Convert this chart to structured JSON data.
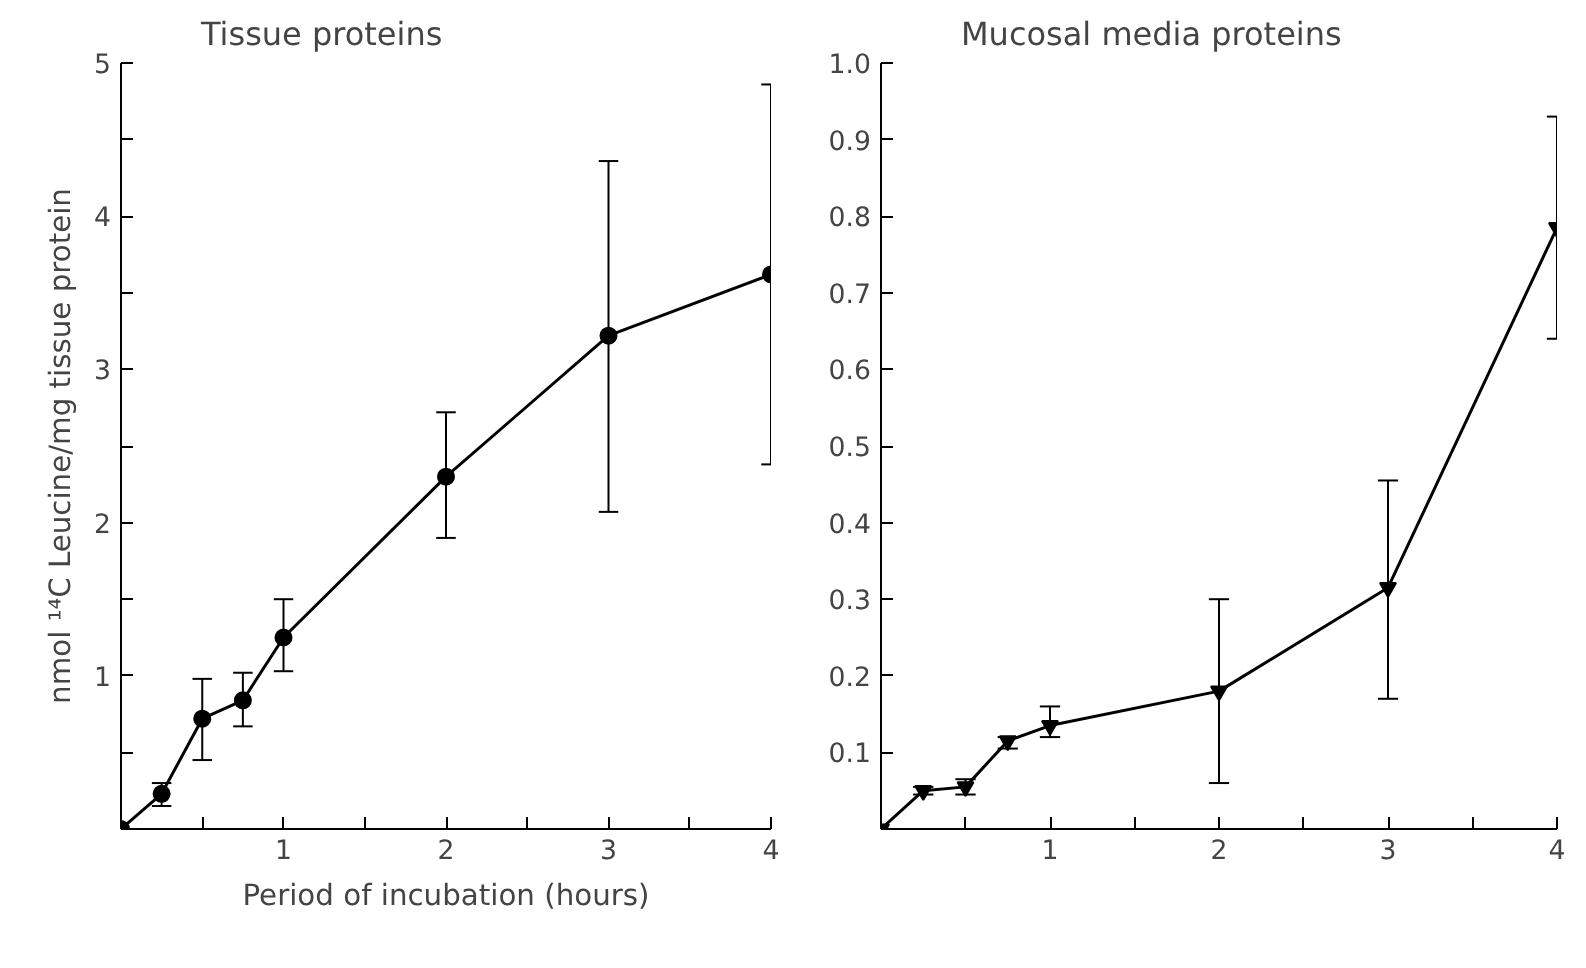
{
  "chart_data": [
    {
      "type": "line",
      "title": "Tissue proteins",
      "xlabel": "Period of incubation (hours)",
      "ylabel": "nmol ¹⁴C Leucine/mg tissue protein",
      "xlim": [
        0,
        4
      ],
      "ylim": [
        0,
        5
      ],
      "xticks": [
        {
          "value": 0.5,
          "label": null
        },
        1,
        {
          "value": 1.5,
          "label": null
        },
        2,
        {
          "value": 2.5,
          "label": null
        },
        3,
        {
          "value": 3.5,
          "label": null
        },
        4
      ],
      "yticks": [
        {
          "value": 0.5,
          "label": null
        },
        1,
        {
          "value": 1.5,
          "label": null
        },
        2,
        {
          "value": 2.5,
          "label": null
        },
        3,
        {
          "value": 3.5,
          "label": null
        },
        4,
        {
          "value": 4.5,
          "label": null
        },
        5
      ],
      "grid": false,
      "line_style": "solid",
      "series": [
        {
          "marker": "circle",
          "color": "#000000",
          "x": [
            0,
            0.25,
            0.5,
            0.75,
            1,
            2,
            3,
            4
          ],
          "values": [
            0,
            0.23,
            0.72,
            0.84,
            1.25,
            2.3,
            3.22,
            3.62
          ],
          "errors": [
            null,
            [
              0.15,
              0.3
            ],
            [
              0.45,
              0.98
            ],
            [
              0.67,
              1.02
            ],
            [
              1.03,
              1.5
            ],
            [
              1.9,
              2.72
            ],
            [
              2.07,
              4.36
            ],
            [
              2.38,
              4.86
            ]
          ]
        }
      ]
    },
    {
      "type": "line",
      "title": "Mucosal media proteins",
      "xlim": [
        0,
        4
      ],
      "ylim": [
        0,
        1.0
      ],
      "xticks": [
        {
          "value": 0.5,
          "label": null
        },
        1,
        {
          "value": 1.5,
          "label": null
        },
        2,
        {
          "value": 2.5,
          "label": null
        },
        3,
        {
          "value": 3.5,
          "label": null
        },
        4
      ],
      "yticks": [
        0.1,
        0.2,
        0.3,
        0.4,
        0.5,
        0.6,
        0.7,
        0.8,
        0.9,
        {
          "value": 1.0,
          "label": "1.0"
        }
      ],
      "grid": false,
      "line_style": "solid",
      "series": [
        {
          "marker": "triangle",
          "color": "#000000",
          "x": [
            0,
            0.25,
            0.5,
            0.75,
            1,
            2,
            3,
            4
          ],
          "values": [
            0,
            0.05,
            0.055,
            0.115,
            0.135,
            0.18,
            0.315,
            0.785
          ],
          "errors": [
            null,
            [
              0.045,
              0.055
            ],
            [
              0.045,
              0.065
            ],
            [
              0.105,
              0.12
            ],
            [
              0.12,
              0.16
            ],
            [
              0.06,
              0.3
            ],
            [
              0.17,
              0.455
            ],
            [
              0.64,
              0.93
            ]
          ]
        }
      ]
    }
  ]
}
